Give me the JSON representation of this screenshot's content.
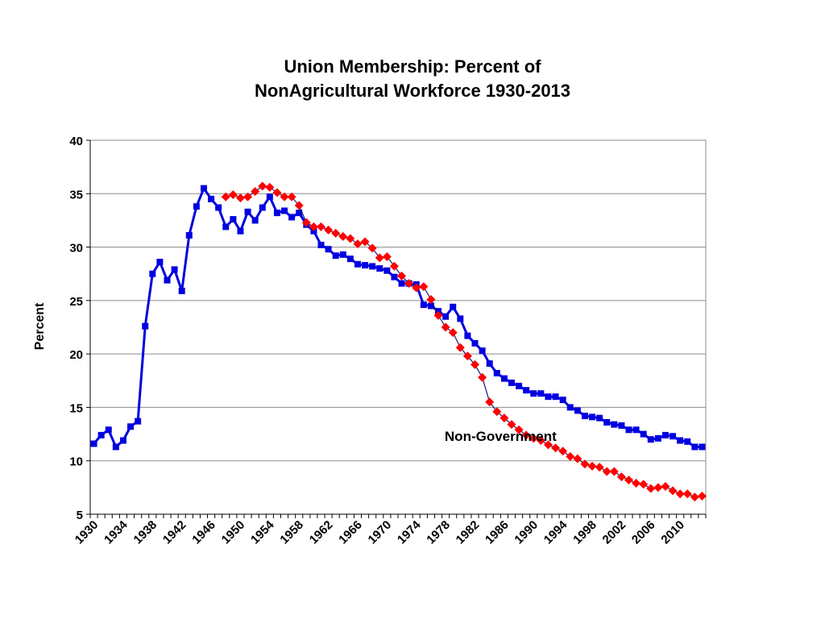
{
  "chart_data": {
    "type": "line",
    "title_lines": [
      "Union Membership:  Percent of",
      "NonAgricultural Workforce 1930-2013"
    ],
    "ylabel": "Percent",
    "xlabel": "",
    "ylim": [
      5,
      40
    ],
    "yticks": [
      5,
      10,
      15,
      20,
      25,
      30,
      35,
      40
    ],
    "xlim": [
      1930,
      2013
    ],
    "xticks": [
      1930,
      1934,
      1938,
      1942,
      1946,
      1950,
      1954,
      1958,
      1962,
      1966,
      1970,
      1974,
      1978,
      1982,
      1986,
      1990,
      1994,
      1998,
      2002,
      2006,
      2010
    ],
    "grid": true,
    "annotations": [
      {
        "text": "Non-Government",
        "x": 1985.5,
        "y": 12.3
      }
    ],
    "series": [
      {
        "color": "#0000e0",
        "marker": "square",
        "x": [
          1930,
          1931,
          1932,
          1933,
          1934,
          1935,
          1936,
          1937,
          1938,
          1939,
          1940,
          1941,
          1942,
          1943,
          1944,
          1945,
          1946,
          1947,
          1948,
          1949,
          1950,
          1951,
          1952,
          1953,
          1954,
          1955,
          1956,
          1957,
          1958,
          1959,
          1960,
          1961,
          1962,
          1963,
          1964,
          1965,
          1966,
          1967,
          1968,
          1969,
          1970,
          1971,
          1972,
          1973,
          1974,
          1975,
          1976,
          1977,
          1978,
          1979,
          1980,
          1981,
          1982,
          1983,
          1984,
          1985,
          1986,
          1987,
          1988,
          1989,
          1990,
          1991,
          1992,
          1993,
          1994,
          1995,
          1996,
          1997,
          1998,
          1999,
          2000,
          2001,
          2002,
          2003,
          2004,
          2005,
          2006,
          2007,
          2008,
          2009,
          2010,
          2011,
          2012,
          2013
        ],
        "y": [
          11.6,
          12.4,
          12.9,
          11.3,
          11.9,
          13.2,
          13.7,
          22.6,
          27.5,
          28.6,
          26.9,
          27.9,
          25.9,
          31.1,
          33.8,
          35.5,
          34.5,
          33.7,
          31.9,
          32.6,
          31.5,
          33.3,
          32.5,
          33.7,
          34.7,
          33.2,
          33.4,
          32.8,
          33.2,
          32.1,
          31.5,
          30.2,
          29.8,
          29.2,
          29.3,
          28.9,
          28.4,
          28.3,
          28.2,
          28.0,
          27.8,
          27.2,
          26.6,
          26.6,
          26.5,
          24.6,
          24.5,
          24.0,
          23.5,
          24.4,
          23.3,
          21.7,
          21.0,
          20.3,
          19.1,
          18.2,
          17.7,
          17.3,
          17.0,
          16.6,
          16.3,
          16.3,
          16.0,
          16.0,
          15.7,
          15.0,
          14.7,
          14.2,
          14.1,
          14.0,
          13.6,
          13.4,
          13.3,
          12.9,
          12.9,
          12.5,
          12.0,
          12.1,
          12.4,
          12.3,
          11.9,
          11.8,
          11.3,
          11.3
        ]
      },
      {
        "color": "#ff0000",
        "marker": "diamond",
        "x": [
          1948,
          1949,
          1950,
          1951,
          1952,
          1953,
          1954,
          1955,
          1956,
          1957,
          1958,
          1959,
          1960,
          1961,
          1962,
          1963,
          1964,
          1965,
          1966,
          1967,
          1968,
          1969,
          1970,
          1971,
          1972,
          1973,
          1974,
          1975,
          1976,
          1977,
          1978,
          1979,
          1980,
          1981,
          1982,
          1983,
          1984,
          1985,
          1986,
          1987,
          1988,
          1989,
          1990,
          1991,
          1992,
          1993,
          1994,
          1995,
          1996,
          1997,
          1998,
          1999,
          2000,
          2001,
          2002,
          2003,
          2004,
          2005,
          2006,
          2007,
          2008,
          2009,
          2010,
          2011,
          2012,
          2013
        ],
        "y": [
          34.7,
          34.9,
          34.6,
          34.7,
          35.2,
          35.7,
          35.6,
          35.1,
          34.7,
          34.7,
          33.9,
          32.3,
          31.9,
          31.9,
          31.6,
          31.3,
          31.0,
          30.8,
          30.3,
          30.5,
          29.9,
          29.0,
          29.1,
          28.2,
          27.3,
          26.6,
          26.2,
          26.3,
          25.1,
          23.6,
          22.5,
          22.0,
          20.6,
          19.8,
          19.0,
          17.8,
          15.5,
          14.6,
          14.0,
          13.4,
          12.9,
          12.4,
          12.1,
          11.9,
          11.5,
          11.2,
          10.9,
          10.4,
          10.2,
          9.7,
          9.5,
          9.4,
          9.0,
          9.0,
          8.5,
          8.2,
          7.9,
          7.8,
          7.4,
          7.5,
          7.6,
          7.2,
          6.9,
          6.9,
          6.6,
          6.7
        ]
      }
    ]
  }
}
